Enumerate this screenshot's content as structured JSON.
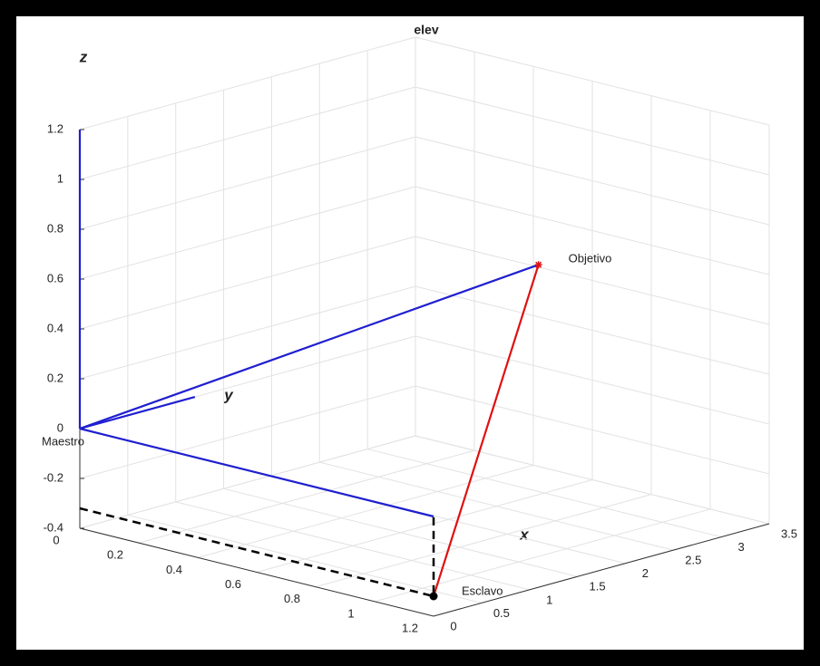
{
  "chart_data": {
    "type": "line3d",
    "title": "elev",
    "xlabel": "x",
    "ylabel": "y",
    "zlabel": "z",
    "xlim": [
      0,
      3.5
    ],
    "xticks": [
      0,
      0.5,
      1,
      1.5,
      2,
      2.5,
      3,
      3.5
    ],
    "ylim": [
      0,
      1.2
    ],
    "yticks": [
      0,
      0.2,
      0.4,
      0.6,
      0.8,
      1,
      1.2
    ],
    "zlim": [
      -0.4,
      1.2
    ],
    "zticks": [
      -0.4,
      -0.2,
      0,
      0.2,
      0.4,
      0.6,
      0.8,
      1,
      1.2
    ],
    "grid": true,
    "series": [
      {
        "color": "#1f1fd0",
        "linestyle": "solid",
        "x": [
          0,
          0
        ],
        "y": [
          0,
          0
        ],
        "z": [
          0,
          1.2
        ]
      },
      {
        "color": "#1f1fd0",
        "linestyle": "solid",
        "x": [
          0,
          1.2
        ],
        "y": [
          0,
          0
        ],
        "z": [
          0,
          0
        ]
      },
      {
        "color": "#1f1fd0",
        "linestyle": "solid",
        "x": [
          0,
          0
        ],
        "y": [
          0,
          1.2
        ],
        "z": [
          0,
          0
        ]
      },
      {
        "color": "#1f1fd0",
        "linestyle": "solid",
        "x": [
          0,
          3
        ],
        "y": [
          0,
          0.58
        ],
        "z": [
          0,
          0.51
        ]
      },
      {
        "color": "#e01010",
        "linestyle": "solid",
        "x": [
          0,
          3
        ],
        "y": [
          1.2,
          0.58
        ],
        "z": [
          -0.32,
          0.51
        ]
      },
      {
        "color": "#000000",
        "linestyle": "dashed",
        "x": [
          0,
          0,
          0
        ],
        "y": [
          0,
          1.2,
          1.2
        ],
        "z": [
          -0.32,
          -0.32,
          0
        ]
      }
    ],
    "points": [
      {
        "label": "Maestro",
        "x": 0,
        "y": 0,
        "z": 0
      },
      {
        "label": "Objetivo",
        "x": 3,
        "y": 0.58,
        "z": 0.51,
        "marker": "star",
        "color": "#e01010"
      },
      {
        "label": "Esclavo",
        "x": 0,
        "y": 1.2,
        "z": -0.32,
        "marker": "dot",
        "color": "#000000"
      }
    ]
  }
}
